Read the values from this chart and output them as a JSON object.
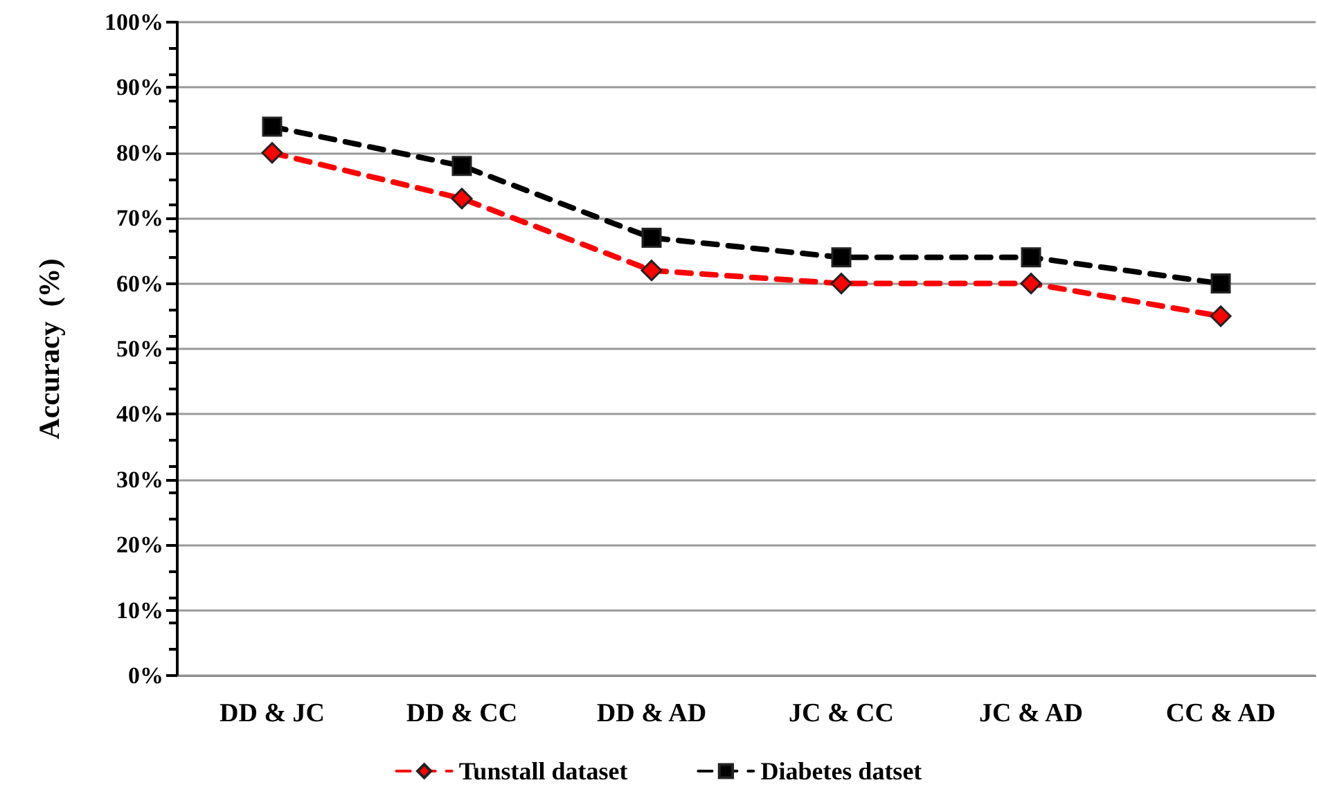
{
  "chart_data": {
    "type": "line",
    "ylabel": "Accuracy  (%)",
    "categories": [
      "DD & JC",
      "DD & CC",
      "DD & AD",
      "JC & CC",
      "JC & AD",
      "CC & AD"
    ],
    "series": [
      {
        "name": "Tunstall dataset",
        "color": "#ff0000",
        "marker": "diamond",
        "values": [
          80,
          73,
          62,
          60,
          60,
          55
        ]
      },
      {
        "name": "Diabetes datset",
        "color": "#000000",
        "marker": "square",
        "values": [
          84,
          78,
          67,
          64,
          64,
          60
        ]
      }
    ],
    "ylim": [
      0,
      100
    ],
    "yticks": [
      {
        "value": 0,
        "label": "0%"
      },
      {
        "value": 10,
        "label": "10%"
      },
      {
        "value": 20,
        "label": "20%"
      },
      {
        "value": 30,
        "label": "30%"
      },
      {
        "value": 40,
        "label": "40%"
      },
      {
        "value": 50,
        "label": "50%"
      },
      {
        "value": 60,
        "label": "60%"
      },
      {
        "value": 70,
        "label": "70%"
      },
      {
        "value": 80,
        "label": "80%"
      },
      {
        "value": 90,
        "label": "90%"
      },
      {
        "value": 100,
        "label": "100%"
      }
    ],
    "grid": "y",
    "legend": "bottom",
    "line_style": "dashed"
  }
}
